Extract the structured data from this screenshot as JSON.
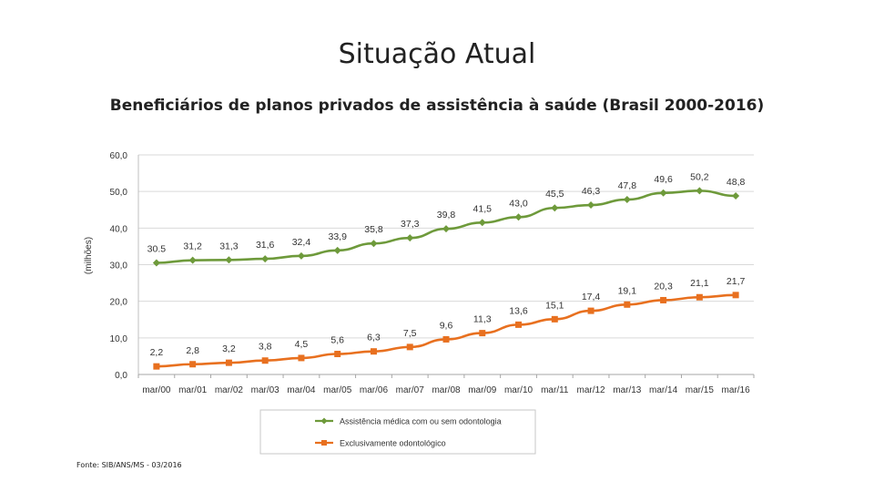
{
  "slide": {
    "title": "Situação Atual",
    "subtitle": "Beneficiários de planos privados de assistência à saúde (Brasil 2000-2016)",
    "source": "Fonte: SIB/ANS/MS - 03/2016"
  },
  "chart_data": {
    "type": "line",
    "title": "",
    "xlabel": "",
    "ylabel": "(milhões)",
    "ylim": [
      0,
      60
    ],
    "yticks": [
      "0,0",
      "10,0",
      "20,0",
      "30,0",
      "40,0",
      "50,0",
      "60,0"
    ],
    "grid": true,
    "legend_position": "bottom",
    "categories": [
      "mar/00",
      "mar/01",
      "mar/02",
      "mar/03",
      "mar/04",
      "mar/05",
      "mar/06",
      "mar/07",
      "mar/08",
      "mar/09",
      "mar/10",
      "mar/11",
      "mar/12",
      "mar/13",
      "mar/14",
      "mar/15",
      "mar/16"
    ],
    "series": [
      {
        "name": "Assistência médica com ou sem odontologia",
        "color": "#6e9a3b",
        "marker": "diamond",
        "values": [
          30.5,
          31.2,
          31.3,
          31.6,
          32.4,
          33.9,
          35.8,
          37.3,
          39.8,
          41.5,
          43.0,
          45.5,
          46.3,
          47.8,
          49.6,
          50.2,
          48.8
        ],
        "labels": [
          "30.5",
          "31,2",
          "31,3",
          "31,6",
          "32,4",
          "33,9",
          "35,8",
          "37,3",
          "39,8",
          "41,5",
          "43,0",
          "45,5",
          "46,3",
          "47,8",
          "49,6",
          "50,2",
          "48,8"
        ]
      },
      {
        "name": "Exclusivamente odontológico",
        "color": "#e8701f",
        "marker": "square",
        "values": [
          2.2,
          2.8,
          3.2,
          3.8,
          4.5,
          5.6,
          6.3,
          7.5,
          9.6,
          11.3,
          13.6,
          15.1,
          17.4,
          19.1,
          20.3,
          21.1,
          21.7
        ],
        "labels": [
          "2,2",
          "2,8",
          "3,2",
          "3,8",
          "4,5",
          "5,6",
          "6,3",
          "7,5",
          "9,6",
          "11,3",
          "13,6",
          "15,1",
          "17,4",
          "19,1",
          "20,3",
          "21,1",
          "21,7"
        ]
      }
    ]
  }
}
